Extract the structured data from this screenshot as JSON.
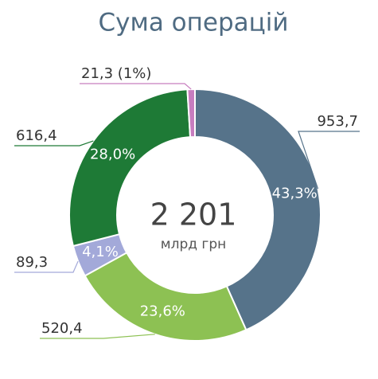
{
  "chart_data": {
    "type": "donut",
    "title": "Сума операцій",
    "values": [
      953.7,
      520.4,
      89.3,
      616.4,
      21.3
    ],
    "value_labels": [
      "953,7",
      "520,4",
      "89,3",
      "616,4",
      "21,3 (1%)"
    ],
    "percents": [
      43.3,
      23.6,
      4.1,
      28.0,
      null
    ],
    "percent_labels": [
      "43,3%",
      "23,6%",
      "4,1%",
      "28,0%",
      null
    ],
    "colors": [
      "#56738a",
      "#8dc153",
      "#a3a9d9",
      "#1e7a36",
      "#c77dbf"
    ],
    "center_label": {
      "value": 2201,
      "label": "2 201"
    },
    "center_sublabel": "млрд грн"
  }
}
